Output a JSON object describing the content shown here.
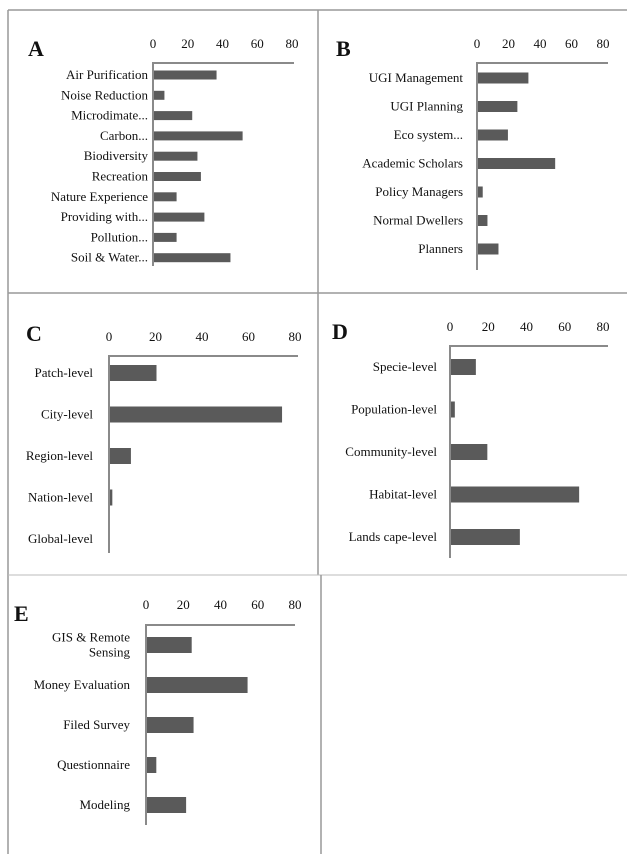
{
  "chart_data": [
    {
      "panel": "A",
      "type": "bar",
      "orientation": "horizontal",
      "xlim": [
        0,
        80
      ],
      "ticks": [
        0,
        20,
        40,
        60,
        80
      ],
      "categories": [
        "Air Purification",
        "Noise Reduction",
        "Microdimate...",
        "Carbon...",
        "Biodiversity",
        "Recreation",
        "Nature Experience",
        "Providing with...",
        "Pollution...",
        "Soil & Water..."
      ],
      "values": [
        36,
        6,
        22,
        51,
        25,
        27,
        13,
        29,
        13,
        44
      ]
    },
    {
      "panel": "B",
      "type": "bar",
      "orientation": "horizontal",
      "xlim": [
        0,
        80
      ],
      "ticks": [
        0,
        20,
        40,
        60,
        80
      ],
      "categories": [
        "UGI Management",
        "UGI Planning",
        "Eco system...",
        "Academic Scholars",
        "Policy Managers",
        "Normal Dwellers",
        "Planners"
      ],
      "values": [
        32,
        25,
        19,
        49,
        3,
        6,
        13
      ]
    },
    {
      "panel": "C",
      "type": "bar",
      "orientation": "horizontal",
      "xlim": [
        0,
        80
      ],
      "ticks": [
        0,
        20,
        40,
        60,
        80
      ],
      "categories": [
        "Patch-level",
        "City-level",
        "Region-level",
        "Nation-level",
        "Global-level"
      ],
      "values": [
        20,
        74,
        9,
        1,
        0
      ]
    },
    {
      "panel": "D",
      "type": "bar",
      "orientation": "horizontal",
      "xlim": [
        0,
        80
      ],
      "ticks": [
        0,
        20,
        40,
        60,
        80
      ],
      "categories": [
        "Specie-level",
        "Population-level",
        "Community-level",
        "Habitat-level",
        "Lands cape-level"
      ],
      "values": [
        13,
        2,
        19,
        67,
        36
      ]
    },
    {
      "panel": "E",
      "type": "bar",
      "orientation": "horizontal",
      "xlim": [
        0,
        80
      ],
      "ticks": [
        0,
        20,
        40,
        60,
        80
      ],
      "categories": [
        [
          "GIS & Remote",
          "Sensing"
        ],
        "Money Evaluation",
        "Filed Survey",
        "Questionnaire",
        "Modeling"
      ],
      "values": [
        24,
        54,
        25,
        5,
        21
      ]
    }
  ],
  "colors": {
    "bar": "#5a5a5a",
    "axis": "#8a8a8a",
    "border": "#999999",
    "background": "#ffffff"
  }
}
